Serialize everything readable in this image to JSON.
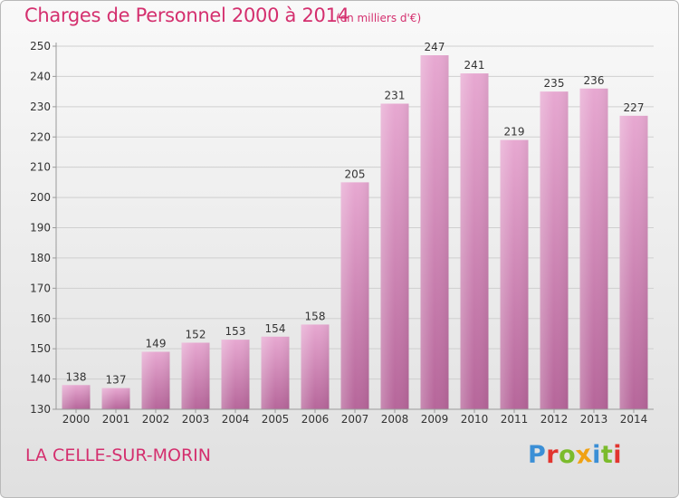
{
  "header": {
    "title": "Charges de Personnel 2000 à 2014",
    "subtitle": "(en milliers d'€)"
  },
  "footer": {
    "commune": "LA CELLE-SUR-MORIN",
    "logo_text": "Proxiti",
    "logo_letters": [
      "P",
      "r",
      "o",
      "x",
      "i",
      "t",
      "i"
    ],
    "logo_colors": [
      "#3b8fd6",
      "#e2352f",
      "#7bbb2c",
      "#f0a214",
      "#3b8fd6",
      "#7bbb2c",
      "#e2352f"
    ]
  },
  "colors": {
    "title": "#d42f6e",
    "bar_light": "#e7a8d1",
    "bar_dark": "#b6669a",
    "grid": "#cfcfcf",
    "axis": "#9a9a9a",
    "text": "#333333"
  },
  "chart_data": {
    "type": "bar",
    "categories": [
      "2000",
      "2001",
      "2002",
      "2003",
      "2004",
      "2005",
      "2006",
      "2007",
      "2008",
      "2009",
      "2010",
      "2011",
      "2012",
      "2013",
      "2014"
    ],
    "values": [
      138,
      137,
      149,
      152,
      153,
      154,
      158,
      205,
      231,
      247,
      241,
      219,
      235,
      236,
      227
    ],
    "ylim": [
      130,
      250
    ],
    "yticks": [
      130,
      140,
      150,
      160,
      170,
      180,
      190,
      200,
      210,
      220,
      230,
      240,
      250
    ],
    "grid": true,
    "data_labels": true
  }
}
